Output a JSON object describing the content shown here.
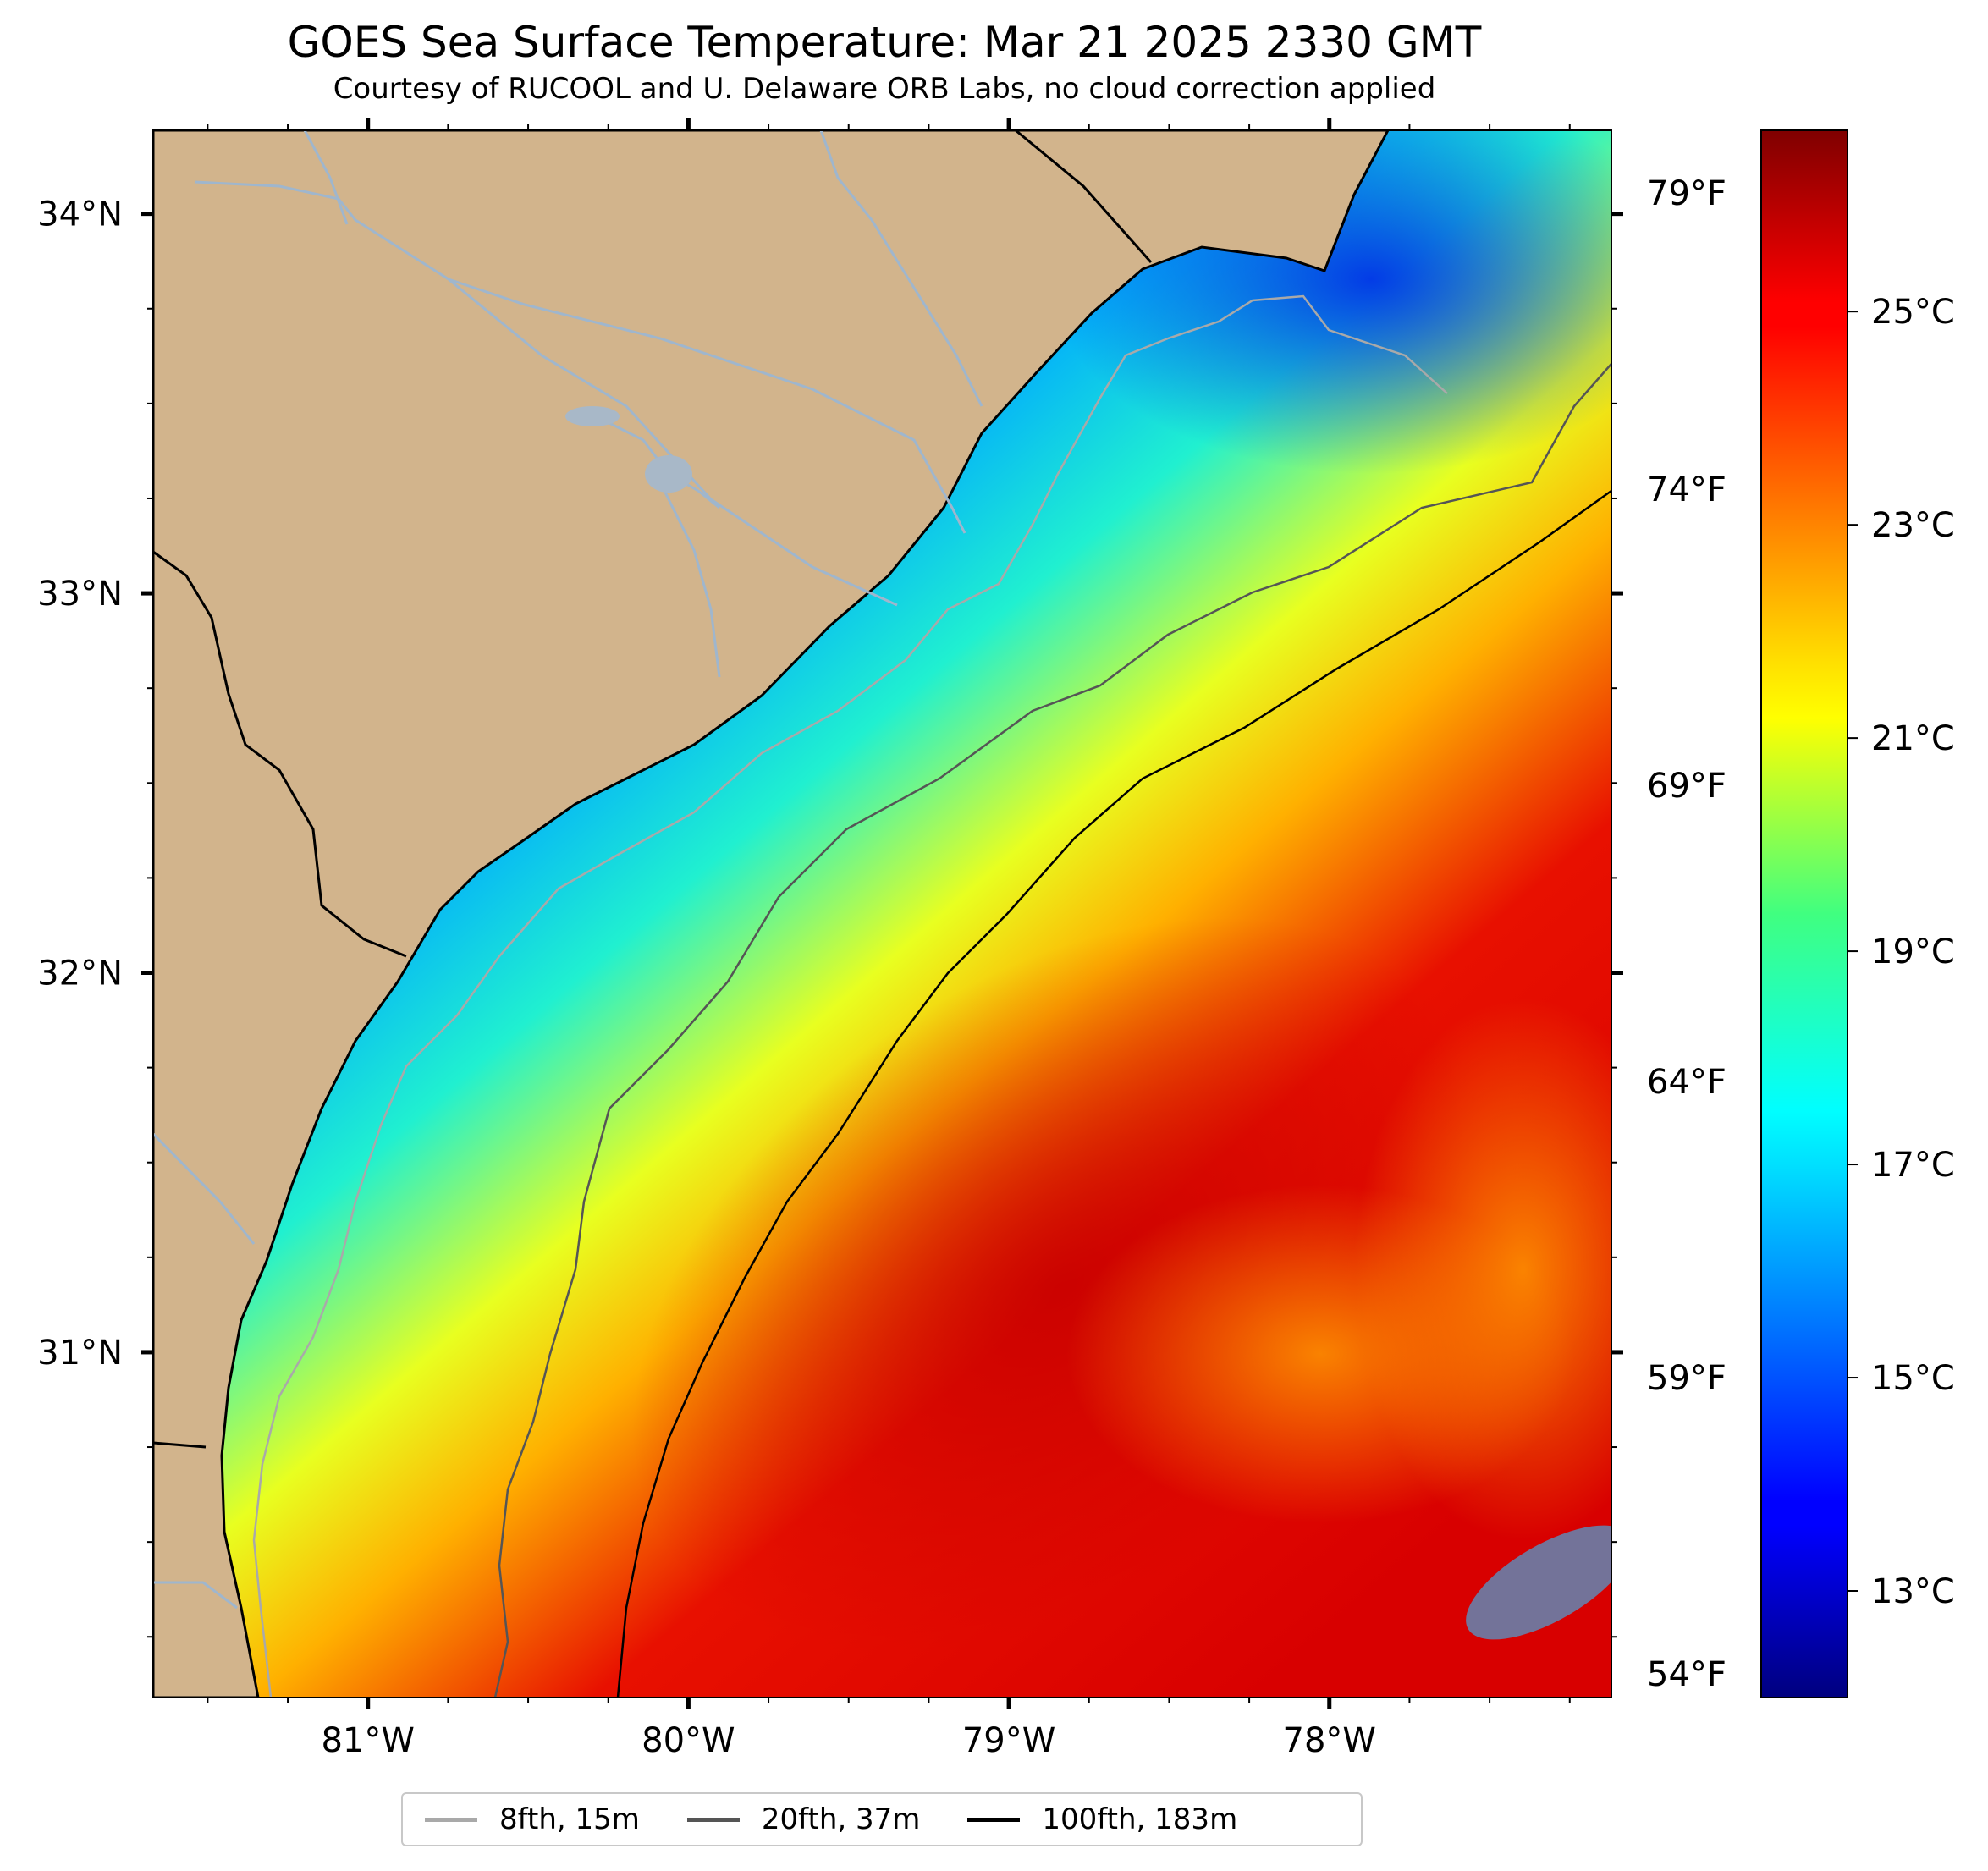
{
  "title": "GOES Sea Surface Temperature: Mar 21 2025 2330 GMT",
  "subtitle": "Courtesy of RUCOOL and U. Delaware ORB Labs, no cloud correction applied",
  "map": {
    "lon_range": [
      -81.67,
      -77.12
    ],
    "lat_range": [
      30.09,
      34.22
    ],
    "lon_ticks": [
      {
        "value": -81,
        "label": "81°W"
      },
      {
        "value": -80,
        "label": "80°W"
      },
      {
        "value": -79,
        "label": "79°W"
      },
      {
        "value": -78,
        "label": "78°W"
      }
    ],
    "lat_ticks": [
      {
        "value": 34,
        "label": "34°N"
      },
      {
        "value": 33,
        "label": "33°N"
      },
      {
        "value": 32,
        "label": "32°N"
      },
      {
        "value": 31,
        "label": "31°N"
      }
    ],
    "land_color": "#d2b48c",
    "river_color": "#9fb6cd",
    "coast_color": "#000000"
  },
  "colorbar": {
    "cmap": "jet",
    "vmin_c": 12.0,
    "vmax_c": 26.7,
    "celsius_ticks": [
      {
        "value": 13,
        "label": "13°C"
      },
      {
        "value": 15,
        "label": "15°C"
      },
      {
        "value": 17,
        "label": "17°C"
      },
      {
        "value": 19,
        "label": "19°C"
      },
      {
        "value": 21,
        "label": "21°C"
      },
      {
        "value": 23,
        "label": "23°C"
      },
      {
        "value": 25,
        "label": "25°C"
      }
    ],
    "fahrenheit_ticks": [
      {
        "value": 54,
        "label": "54°F"
      },
      {
        "value": 59,
        "label": "59°F"
      },
      {
        "value": 64,
        "label": "64°F"
      },
      {
        "value": 69,
        "label": "69°F"
      },
      {
        "value": 74,
        "label": "74°F"
      },
      {
        "value": 79,
        "label": "79°F"
      }
    ]
  },
  "legend": {
    "items": [
      {
        "label": "8fth, 15m",
        "color": "#a9a9a9"
      },
      {
        "label": "20fth, 37m",
        "color": "#555555"
      },
      {
        "label": "100fth, 183m",
        "color": "#000000"
      }
    ]
  }
}
